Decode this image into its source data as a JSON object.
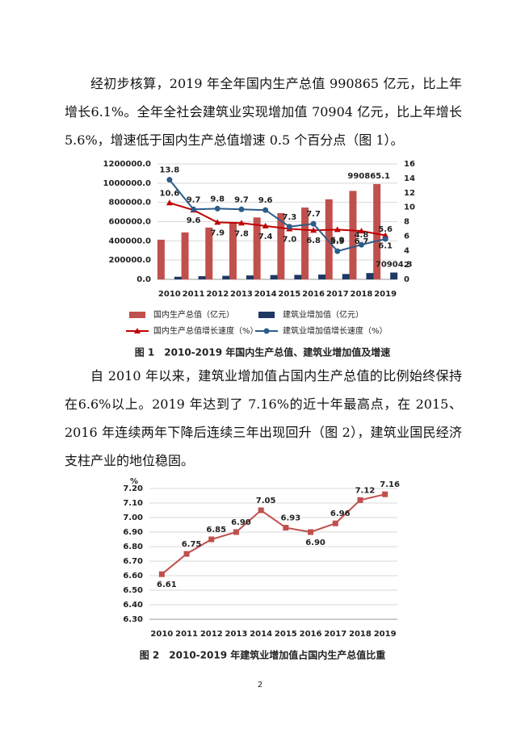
{
  "paragraphs": [
    "经初步核算，2019 年全年国内生产总值 990865 亿元，比上年增长6.1%。全年全社会建筑业实现增加值 70904 亿元，比上年增长 5.6%，增速低于国内生产总值增速 0.5 个百分点（图 1）。",
    "自 2010 年以来，建筑业增加值占国内生产总值的比例始终保持在6.6%以上。2019 年达到了 7.16%的近十年最高点，在 2015、2016 年连续两年下降后连续三年出现回升（图 2），建筑业国民经济支柱产业的地位稳固。"
  ],
  "chart_data": [
    {
      "type": "bar",
      "caption": "图 1　2010-2019 年国内生产总值、建筑业增加值及增速",
      "categories": [
        "2010",
        "2011",
        "2012",
        "2013",
        "2014",
        "2015",
        "2016",
        "2017",
        "2018",
        "2019"
      ],
      "ylim": [
        0,
        1200000
      ],
      "yticks": [
        {
          "value": 0,
          "label": "0.0"
        },
        {
          "value": 200000,
          "label": "200000.0"
        },
        {
          "value": 400000,
          "label": "400000.0"
        },
        {
          "value": 600000,
          "label": "600000.0"
        },
        {
          "value": 800000,
          "label": "800000.0"
        },
        {
          "value": 1000000,
          "label": "1000000.0"
        },
        {
          "value": 1200000,
          "label": "1200000.0"
        }
      ],
      "y2lim": [
        0,
        16
      ],
      "y2ticks": [
        0,
        2,
        4,
        6,
        8,
        10,
        12,
        14,
        16
      ],
      "grid": true,
      "legend": "bottom",
      "series": [
        {
          "name": "国内生产总值（亿元）",
          "type": "bar",
          "color": "#c0504d",
          "values": [
            412119,
            487940,
            538580,
            592963,
            643563,
            688858,
            746395,
            832036,
            919281,
            990865.1
          ],
          "value_labels": [
            null,
            null,
            null,
            null,
            null,
            null,
            null,
            null,
            null,
            "990865.1"
          ]
        },
        {
          "name": "建筑业增加值（亿元）",
          "type": "bar",
          "color": "#1f3864",
          "values": [
            27259,
            32926,
            36896,
            40897,
            44880,
            46627,
            49703,
            55689,
            65493,
            70904.3
          ],
          "value_labels": [
            null,
            null,
            null,
            null,
            null,
            null,
            null,
            null,
            null,
            "70904.3"
          ]
        },
        {
          "name": "国内生产总值增长速度（%）",
          "type": "line",
          "axis": "y2",
          "marker": "triangle",
          "color": "#c00000",
          "values": [
            10.6,
            9.6,
            7.9,
            7.8,
            7.4,
            7.0,
            6.8,
            6.9,
            6.7,
            6.1
          ],
          "value_labels": [
            "10.6",
            "9.6",
            "7.9",
            "7.8",
            "7.4",
            "7.0",
            "6.8",
            "6.9",
            "6.7",
            "6.1"
          ]
        },
        {
          "name": "建筑业增加值增长速度（%）",
          "type": "line",
          "axis": "y2",
          "marker": "circle",
          "color": "#2e5c8a",
          "values": [
            13.8,
            9.7,
            9.8,
            9.7,
            9.6,
            7.3,
            7.7,
            3.9,
            4.8,
            5.6
          ],
          "value_labels": [
            "13.8",
            "9.7",
            "9.8",
            "9.7",
            "9.6",
            "7.3",
            "7.7",
            "3.9",
            "4.8",
            "5.6"
          ]
        }
      ]
    },
    {
      "type": "line",
      "caption": "图 2　2010-2019 年建筑业增加值占国内生产总值比重",
      "y_label": "%",
      "categories": [
        "2010",
        "2011",
        "2012",
        "2013",
        "2014",
        "2015",
        "2016",
        "2017",
        "2018",
        "2019"
      ],
      "ylim": [
        6.3,
        7.2
      ],
      "yticks": [
        {
          "value": 6.3,
          "label": "6.30"
        },
        {
          "value": 6.4,
          "label": "6.40"
        },
        {
          "value": 6.5,
          "label": "6.50"
        },
        {
          "value": 6.6,
          "label": "6.60"
        },
        {
          "value": 6.7,
          "label": "6.70"
        },
        {
          "value": 6.8,
          "label": "6.80"
        },
        {
          "value": 6.9,
          "label": "6.90"
        },
        {
          "value": 7.0,
          "label": "7.00"
        },
        {
          "value": 7.1,
          "label": "7.10"
        },
        {
          "value": 7.2,
          "label": "7.20"
        }
      ],
      "grid": true,
      "series": [
        {
          "name": "建筑业增加值占国内生产总值比重",
          "color": "#c0504d",
          "marker": "square",
          "values": [
            6.61,
            6.75,
            6.85,
            6.9,
            7.05,
            6.93,
            6.9,
            6.96,
            7.12,
            7.16
          ],
          "value_labels": [
            "6.61",
            "6.75",
            "6.85",
            "6.90",
            "7.05",
            "6.93",
            "6.90",
            "6.96",
            "7.12",
            "7.16"
          ]
        }
      ]
    }
  ],
  "page_number": "2"
}
